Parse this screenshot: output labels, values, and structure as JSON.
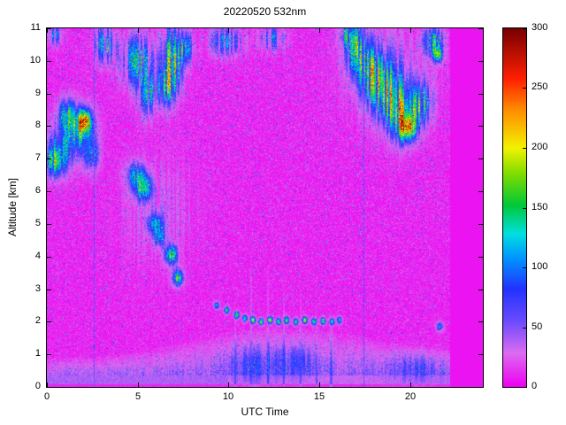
{
  "chart_data": {
    "type": "heatmap",
    "title": "20220520 532nm",
    "xlabel": "UTC Time",
    "ylabel": "Altitude [km]",
    "x_range": [
      0,
      24
    ],
    "y_range": [
      0,
      11
    ],
    "x_ticks": [
      0,
      5,
      10,
      15,
      20
    ],
    "y_ticks": [
      0,
      1,
      2,
      3,
      4,
      5,
      6,
      7,
      8,
      9,
      10,
      11
    ],
    "colorbar": {
      "min": 0,
      "max": 300,
      "ticks": [
        0,
        50,
        100,
        150,
        200,
        250,
        300
      ]
    },
    "colormap": [
      [
        0,
        "#EE00F2"
      ],
      [
        28,
        "#DC6CF0"
      ],
      [
        55,
        "#6A4BFF"
      ],
      [
        82,
        "#2233FF"
      ],
      [
        108,
        "#0096FF"
      ],
      [
        128,
        "#00E0E0"
      ],
      [
        152,
        "#00C838"
      ],
      [
        178,
        "#7EDC00"
      ],
      [
        200,
        "#F2F200"
      ],
      [
        232,
        "#FF8C00"
      ],
      [
        258,
        "#FF2000"
      ],
      [
        300,
        "#780000"
      ]
    ],
    "background_value_mean": 8,
    "no_data_after": 22.2,
    "surface_layer": {
      "top_km": 0.34,
      "value": 30
    },
    "boundary_layer": {
      "value": 40,
      "heights": [
        [
          0,
          0.9
        ],
        [
          3,
          0.95
        ],
        [
          6,
          1.2
        ],
        [
          9,
          1.6
        ],
        [
          12,
          1.9
        ],
        [
          15,
          1.85
        ],
        [
          18,
          1.5
        ],
        [
          20,
          1.3
        ],
        [
          22.2,
          1.15
        ]
      ]
    },
    "clouds": [
      {
        "t": 0.8,
        "alt": 7.3,
        "rx": 0.85,
        "ry": 0.75,
        "intensity": 120,
        "streakiness": 0.5
      },
      {
        "t": 0.45,
        "alt": 6.9,
        "rx": 0.5,
        "ry": 0.45,
        "intensity": 150,
        "streakiness": 0.4
      },
      {
        "t": 1.8,
        "alt": 7.9,
        "rx": 0.8,
        "ry": 0.7,
        "intensity": 170,
        "streakiness": 0.5
      },
      {
        "t": 2.05,
        "alt": 8.15,
        "rx": 0.35,
        "ry": 0.35,
        "intensity": 255,
        "streakiness": 0.3
      },
      {
        "t": 1.1,
        "alt": 8.35,
        "rx": 0.5,
        "ry": 0.5,
        "intensity": 140,
        "streakiness": 0.5
      },
      {
        "t": 2.45,
        "alt": 7.1,
        "rx": 0.4,
        "ry": 0.5,
        "intensity": 130,
        "streakiness": 0.5
      },
      {
        "t": 3.2,
        "alt": 10.5,
        "rx": 0.6,
        "ry": 0.6,
        "intensity": 130,
        "streakiness": 0.8
      },
      {
        "t": 0.4,
        "alt": 10.8,
        "rx": 0.5,
        "ry": 0.35,
        "intensity": 100,
        "streakiness": 0.8
      },
      {
        "t": 5.0,
        "alt": 10.0,
        "rx": 0.9,
        "ry": 0.8,
        "intensity": 140,
        "streakiness": 0.8
      },
      {
        "t": 5.6,
        "alt": 9.0,
        "rx": 0.6,
        "ry": 0.7,
        "intensity": 120,
        "streakiness": 0.8
      },
      {
        "t": 6.9,
        "alt": 10.0,
        "rx": 0.55,
        "ry": 1.0,
        "intensity": 230,
        "streakiness": 0.6
      },
      {
        "t": 6.5,
        "alt": 9.2,
        "rx": 0.5,
        "ry": 0.6,
        "intensity": 150,
        "streakiness": 0.7
      },
      {
        "t": 7.6,
        "alt": 10.4,
        "rx": 0.5,
        "ry": 0.5,
        "intensity": 120,
        "streakiness": 0.8
      },
      {
        "t": 9.9,
        "alt": 10.6,
        "rx": 0.9,
        "ry": 0.45,
        "intensity": 110,
        "streakiness": 0.85
      },
      {
        "t": 12.4,
        "alt": 10.7,
        "rx": 0.7,
        "ry": 0.4,
        "intensity": 95,
        "streakiness": 0.85
      },
      {
        "t": 5.3,
        "alt": 6.1,
        "rx": 0.5,
        "ry": 0.4,
        "intensity": 190,
        "streakiness": 0.4
      },
      {
        "t": 4.9,
        "alt": 6.5,
        "rx": 0.6,
        "ry": 0.4,
        "intensity": 120,
        "streakiness": 0.5
      },
      {
        "t": 5.95,
        "alt": 5.0,
        "rx": 0.4,
        "ry": 0.35,
        "intensity": 170,
        "streakiness": 0.4
      },
      {
        "t": 6.2,
        "alt": 4.6,
        "rx": 0.3,
        "ry": 0.3,
        "intensity": 140,
        "streakiness": 0.4
      },
      {
        "t": 6.85,
        "alt": 4.05,
        "rx": 0.35,
        "ry": 0.3,
        "intensity": 200,
        "streakiness": 0.3
      },
      {
        "t": 7.2,
        "alt": 3.35,
        "rx": 0.3,
        "ry": 0.25,
        "intensity": 220,
        "streakiness": 0.3
      },
      {
        "t": 6.1,
        "alt": 5.4,
        "rx": 2.0,
        "ry": 1.6,
        "intensity": 28,
        "streakiness": 0.9
      },
      {
        "t": 17.1,
        "alt": 10.3,
        "rx": 0.7,
        "ry": 0.8,
        "intensity": 150,
        "streakiness": 0.7
      },
      {
        "t": 17.9,
        "alt": 9.6,
        "rx": 0.8,
        "ry": 0.8,
        "intensity": 160,
        "streakiness": 0.7
      },
      {
        "t": 18.8,
        "alt": 9.0,
        "rx": 0.9,
        "ry": 0.9,
        "intensity": 170,
        "streakiness": 0.7
      },
      {
        "t": 19.6,
        "alt": 8.3,
        "rx": 0.8,
        "ry": 0.8,
        "intensity": 200,
        "streakiness": 0.6
      },
      {
        "t": 19.85,
        "alt": 7.95,
        "rx": 0.4,
        "ry": 0.4,
        "intensity": 265,
        "streakiness": 0.3
      },
      {
        "t": 20.6,
        "alt": 8.7,
        "rx": 0.6,
        "ry": 0.7,
        "intensity": 150,
        "streakiness": 0.7
      },
      {
        "t": 18.8,
        "alt": 9.6,
        "rx": 2.2,
        "ry": 1.5,
        "intensity": 45,
        "streakiness": 0.9
      },
      {
        "t": 16.6,
        "alt": 10.8,
        "rx": 0.5,
        "ry": 0.4,
        "intensity": 130,
        "streakiness": 0.7
      },
      {
        "t": 21.3,
        "alt": 10.6,
        "rx": 0.55,
        "ry": 0.45,
        "intensity": 160,
        "streakiness": 0.6
      },
      {
        "t": 21.5,
        "alt": 10.2,
        "rx": 0.25,
        "ry": 0.25,
        "intensity": 230,
        "streakiness": 0.3
      },
      {
        "t": 21.65,
        "alt": 1.85,
        "rx": 0.2,
        "ry": 0.15,
        "intensity": 130,
        "streakiness": 0.3
      },
      {
        "t": 20.3,
        "alt": 0.6,
        "rx": 1.8,
        "ry": 0.5,
        "intensity": 40,
        "streakiness": 0.6
      },
      {
        "t": 11.5,
        "alt": 0.7,
        "rx": 1.6,
        "ry": 0.6,
        "intensity": 45,
        "streakiness": 0.7
      },
      {
        "t": 13.8,
        "alt": 0.8,
        "rx": 1.2,
        "ry": 0.5,
        "intensity": 38,
        "streakiness": 0.7
      }
    ],
    "dots_2km": [
      [
        9.35,
        2.5,
        150
      ],
      [
        9.9,
        2.35,
        180
      ],
      [
        10.45,
        2.2,
        200
      ],
      [
        10.9,
        2.1,
        170
      ],
      [
        11.35,
        2.05,
        220
      ],
      [
        11.8,
        2.0,
        190
      ],
      [
        12.3,
        2.05,
        240
      ],
      [
        12.75,
        2.0,
        180
      ],
      [
        13.2,
        2.05,
        210
      ],
      [
        13.7,
        2.0,
        170
      ],
      [
        14.2,
        2.05,
        230
      ],
      [
        14.7,
        2.0,
        180
      ],
      [
        15.2,
        2.02,
        200
      ],
      [
        15.7,
        2.0,
        170
      ],
      [
        16.1,
        2.05,
        150
      ]
    ],
    "virga_lines": [
      [
        10.35,
        3.0
      ],
      [
        11.25,
        4.3
      ],
      [
        12.15,
        3.9
      ],
      [
        13.05,
        3.5
      ],
      [
        13.95,
        3.1
      ],
      [
        14.85,
        2.7
      ],
      [
        15.65,
        2.4
      ]
    ],
    "artifact_lines": [
      {
        "t": 2.62,
        "value": 55
      },
      {
        "t": 17.45,
        "value": 55
      }
    ]
  }
}
